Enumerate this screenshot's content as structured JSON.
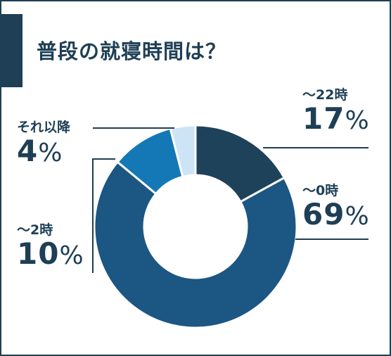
{
  "title": "普段の就寝時間は？",
  "chart_data": {
    "type": "pie",
    "style": "donut",
    "categories": [
      "〜22時",
      "〜0時",
      "〜2時",
      "それ以降"
    ],
    "values": [
      17,
      69,
      10,
      4
    ],
    "unit": "%",
    "colors": [
      "#1e4259",
      "#1c5683",
      "#1478b6",
      "#cde4f7"
    ]
  },
  "labels": [
    {
      "name": "〜22時",
      "value": "17",
      "unit": "%"
    },
    {
      "name": "〜0時",
      "value": "69",
      "unit": "%"
    },
    {
      "name": "〜2時",
      "value": "10",
      "unit": "%"
    },
    {
      "name": "それ以降",
      "value": "4",
      "unit": "%"
    }
  ]
}
